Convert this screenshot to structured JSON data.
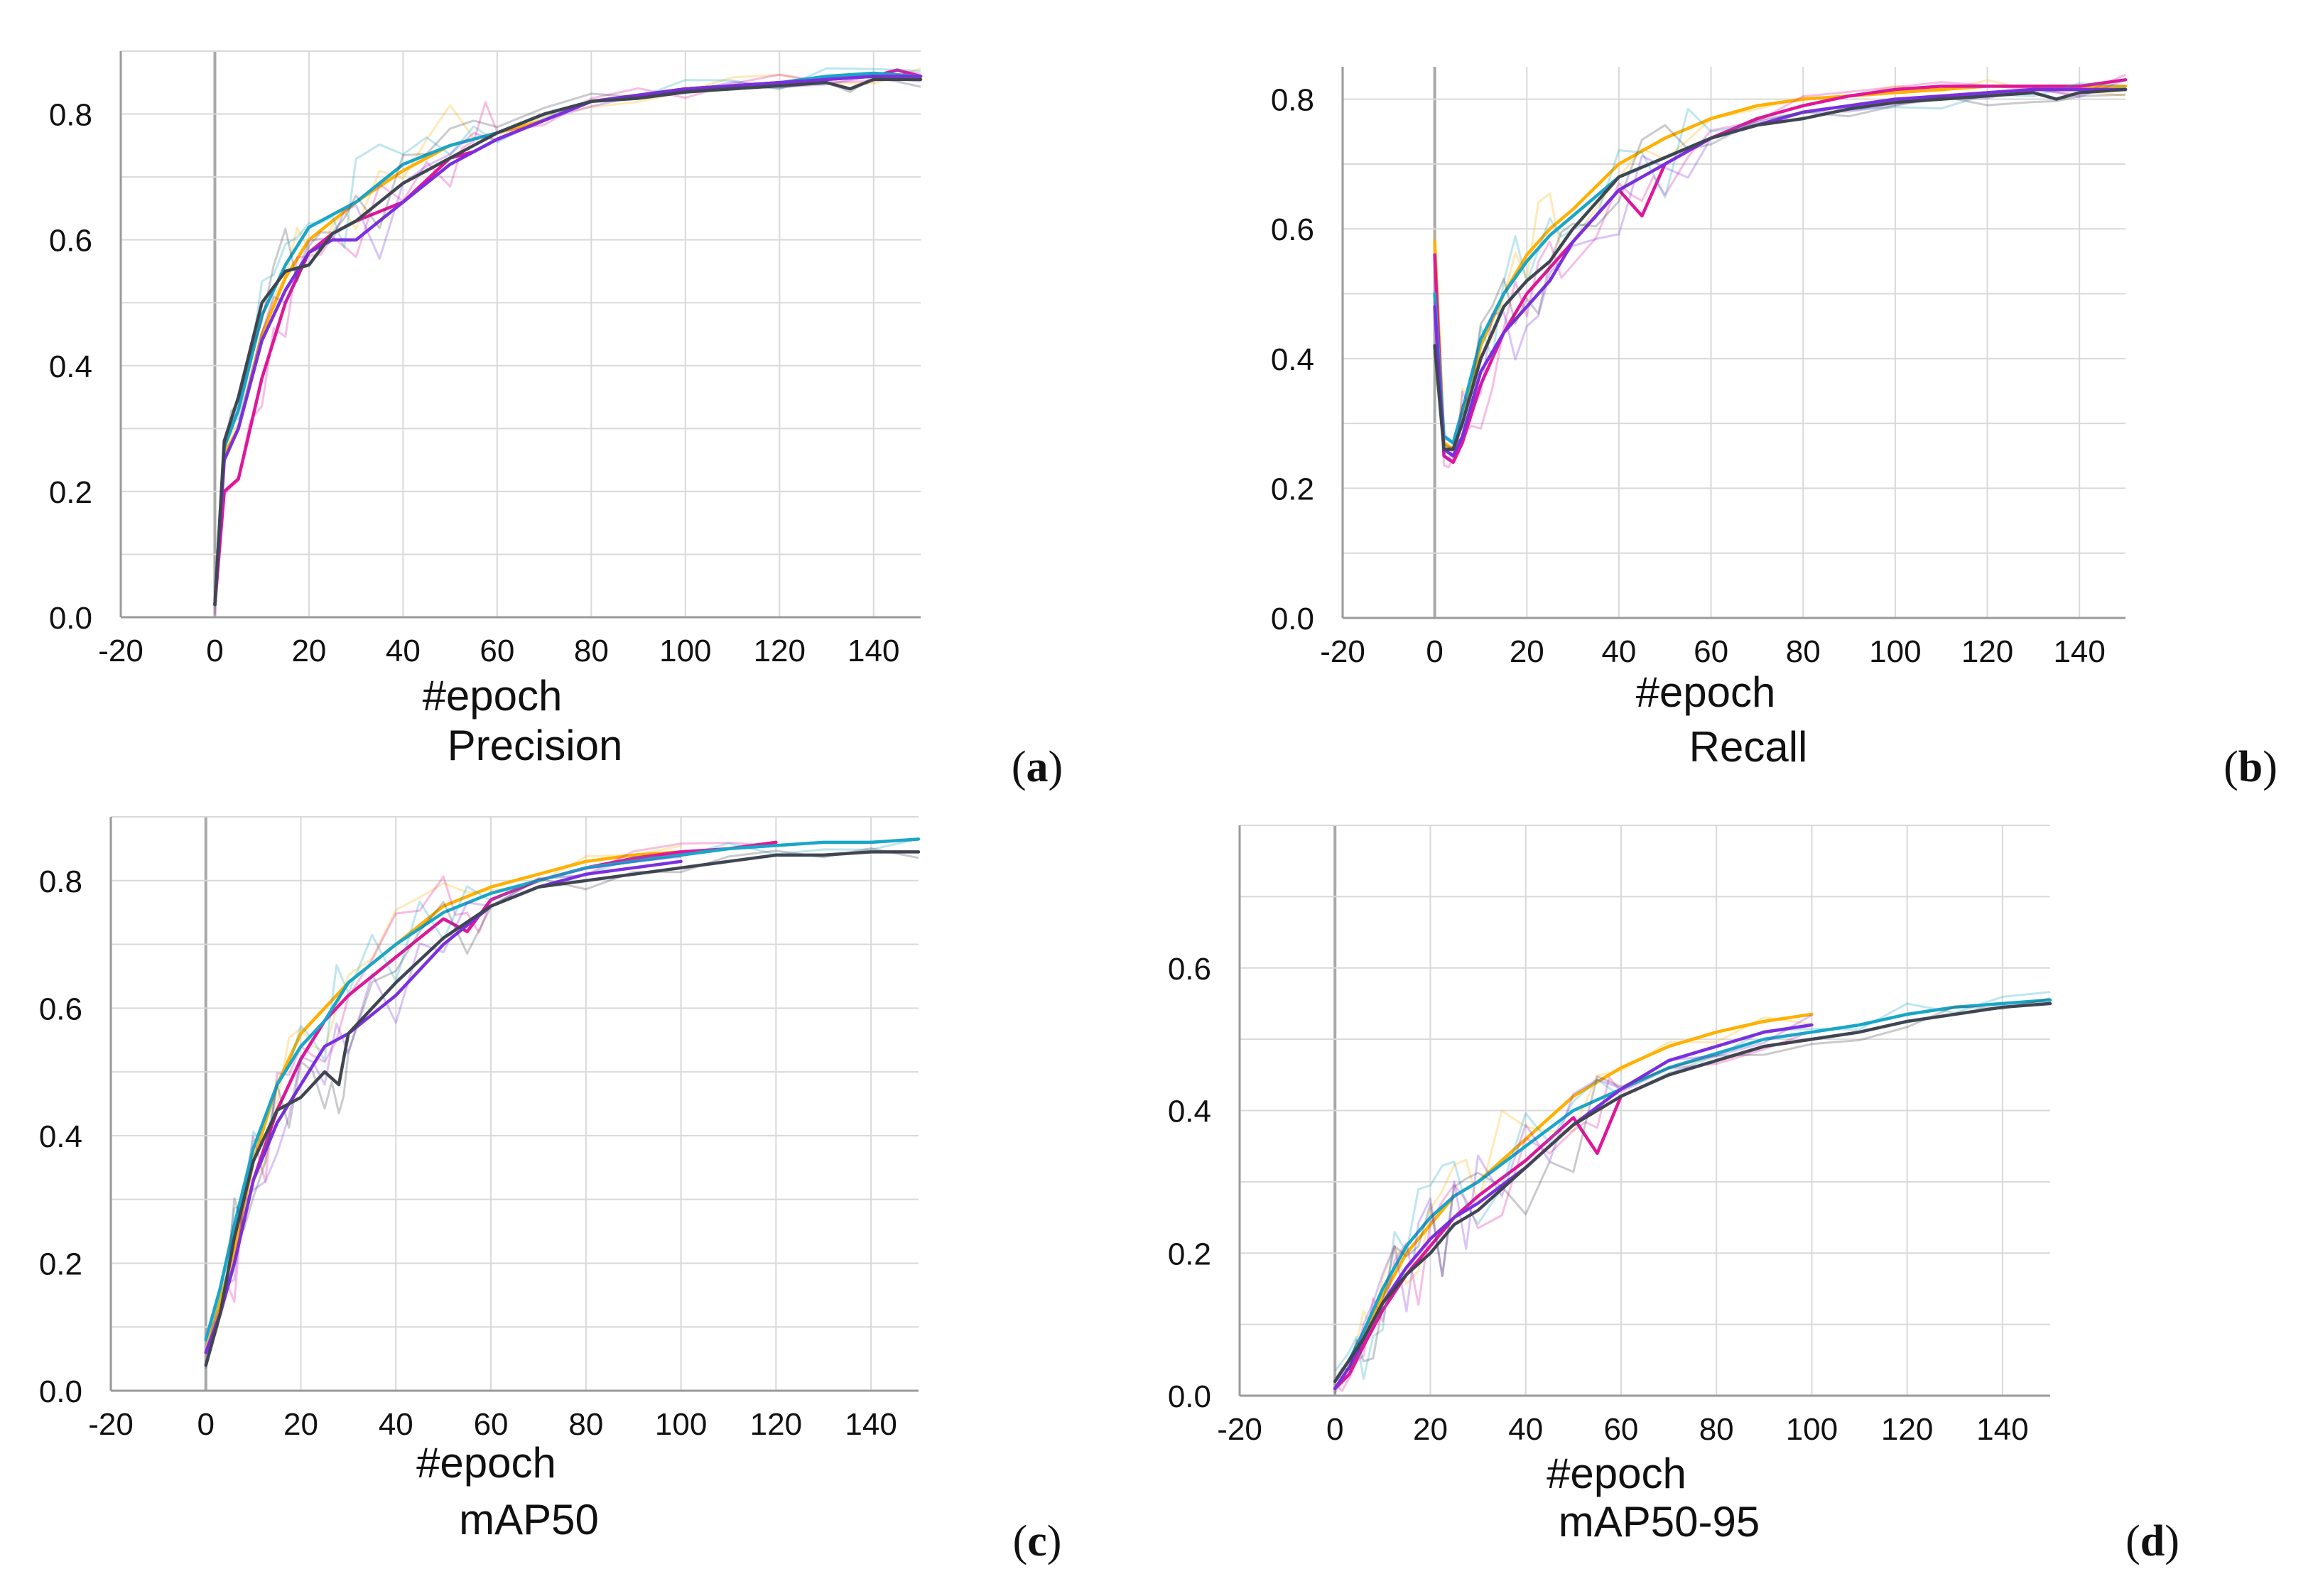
{
  "series_names": [
    "orange",
    "magenta",
    "cyan",
    "purple",
    "gray"
  ],
  "series_colors": [
    "#ffb000",
    "#e0169a",
    "#19a6c7",
    "#7b2fe0",
    "#3f4652"
  ],
  "chart_data": [
    {
      "id": "a",
      "type": "line",
      "letter": "a",
      "xlabel": "#epoch",
      "title": "Precision",
      "xlim": [
        -20,
        150
      ],
      "ylim": [
        0,
        0.9
      ],
      "xticks": [
        -20,
        0,
        20,
        40,
        60,
        80,
        100,
        120,
        140
      ],
      "xtick_labels": [
        "-20",
        "0",
        "20",
        "40",
        "60",
        "80",
        "100",
        "120",
        "140"
      ],
      "yticks": [
        0.0,
        0.2,
        0.4,
        0.6,
        0.8
      ],
      "ytick_labels": [
        "0.0",
        "0.2",
        "0.4",
        "0.6",
        "0.8"
      ],
      "series": [
        {
          "name": "orange",
          "x": [
            0,
            2,
            5,
            10,
            15,
            20,
            25,
            30,
            40,
            50,
            60,
            70,
            80,
            90,
            100,
            110,
            120,
            130,
            140,
            150
          ],
          "values": [
            0.02,
            0.26,
            0.3,
            0.45,
            0.54,
            0.6,
            0.63,
            0.66,
            0.71,
            0.75,
            0.77,
            0.79,
            0.82,
            0.83,
            0.84,
            0.845,
            0.85,
            0.855,
            0.86,
            0.86
          ]
        },
        {
          "name": "magenta",
          "x": [
            0,
            2,
            5,
            10,
            15,
            20,
            25,
            30,
            40,
            50,
            55,
            60,
            70,
            80,
            90,
            100,
            110,
            120,
            130,
            140,
            145,
            150
          ],
          "values": [
            0.02,
            0.2,
            0.22,
            0.38,
            0.5,
            0.58,
            0.61,
            0.63,
            0.66,
            0.73,
            0.74,
            0.76,
            0.79,
            0.82,
            0.83,
            0.84,
            0.845,
            0.85,
            0.855,
            0.86,
            0.87,
            0.86
          ]
        },
        {
          "name": "cyan",
          "x": [
            0,
            2,
            5,
            10,
            15,
            20,
            25,
            30,
            40,
            50,
            60,
            70,
            80,
            90,
            100,
            110,
            120,
            130,
            140,
            150
          ],
          "values": [
            0.02,
            0.27,
            0.33,
            0.48,
            0.56,
            0.62,
            0.64,
            0.66,
            0.72,
            0.75,
            0.77,
            0.8,
            0.82,
            0.83,
            0.84,
            0.845,
            0.85,
            0.86,
            0.865,
            0.86
          ]
        },
        {
          "name": "purple",
          "x": [
            0,
            2,
            5,
            10,
            15,
            20,
            25,
            30,
            40,
            50,
            60,
            70,
            80,
            90,
            100,
            110,
            120,
            130,
            140,
            150
          ],
          "values": [
            0.02,
            0.25,
            0.3,
            0.44,
            0.52,
            0.58,
            0.6,
            0.6,
            0.66,
            0.72,
            0.76,
            0.79,
            0.82,
            0.83,
            0.84,
            0.845,
            0.85,
            0.855,
            0.86,
            0.86
          ]
        },
        {
          "name": "gray",
          "x": [
            0,
            2,
            5,
            10,
            15,
            20,
            25,
            30,
            40,
            50,
            60,
            70,
            80,
            90,
            100,
            110,
            120,
            130,
            135,
            140,
            150
          ],
          "values": [
            0.02,
            0.28,
            0.35,
            0.5,
            0.55,
            0.56,
            0.61,
            0.63,
            0.69,
            0.73,
            0.77,
            0.8,
            0.82,
            0.825,
            0.835,
            0.84,
            0.845,
            0.85,
            0.84,
            0.855,
            0.855
          ]
        }
      ]
    },
    {
      "id": "b",
      "type": "line",
      "letter": "b",
      "xlabel": "#epoch",
      "title": "Recall",
      "xlim": [
        -20,
        150
      ],
      "ylim": [
        0,
        0.85
      ],
      "xticks": [
        -20,
        0,
        20,
        40,
        60,
        80,
        100,
        120,
        140
      ],
      "xtick_labels": [
        "-20",
        "0",
        "20",
        "40",
        "60",
        "80",
        "100",
        "120",
        "140"
      ],
      "yticks": [
        0.0,
        0.2,
        0.4,
        0.6,
        0.8
      ],
      "ytick_labels": [
        "0.0",
        "0.2",
        "0.4",
        "0.6",
        "0.8"
      ],
      "series": [
        {
          "name": "orange",
          "x": [
            0,
            2,
            4,
            6,
            10,
            15,
            20,
            25,
            30,
            40,
            50,
            60,
            70,
            80,
            90,
            100,
            110,
            120,
            130,
            140,
            150
          ],
          "values": [
            0.58,
            0.27,
            0.26,
            0.3,
            0.42,
            0.5,
            0.56,
            0.6,
            0.63,
            0.7,
            0.74,
            0.77,
            0.79,
            0.8,
            0.805,
            0.81,
            0.815,
            0.82,
            0.82,
            0.82,
            0.82
          ]
        },
        {
          "name": "magenta",
          "x": [
            0,
            2,
            4,
            6,
            10,
            15,
            20,
            25,
            30,
            40,
            45,
            50,
            60,
            70,
            80,
            90,
            100,
            110,
            120,
            130,
            140,
            150
          ],
          "values": [
            0.56,
            0.25,
            0.24,
            0.27,
            0.36,
            0.44,
            0.5,
            0.54,
            0.58,
            0.66,
            0.62,
            0.7,
            0.74,
            0.77,
            0.79,
            0.805,
            0.815,
            0.82,
            0.82,
            0.82,
            0.82,
            0.83
          ]
        },
        {
          "name": "cyan",
          "x": [
            0,
            2,
            4,
            6,
            10,
            15,
            20,
            25,
            30,
            40,
            50,
            60,
            70,
            80,
            90,
            100,
            110,
            120,
            130,
            140,
            150
          ],
          "values": [
            0.5,
            0.28,
            0.27,
            0.32,
            0.43,
            0.5,
            0.55,
            0.59,
            0.62,
            0.68,
            0.71,
            0.74,
            0.76,
            0.78,
            0.79,
            0.8,
            0.8,
            0.81,
            0.815,
            0.815,
            0.815
          ]
        },
        {
          "name": "purple",
          "x": [
            0,
            2,
            4,
            6,
            10,
            15,
            20,
            25,
            30,
            40,
            50,
            60,
            70,
            80,
            90,
            100,
            110,
            120,
            130,
            140,
            150
          ],
          "values": [
            0.48,
            0.26,
            0.25,
            0.28,
            0.38,
            0.44,
            0.48,
            0.52,
            0.58,
            0.66,
            0.7,
            0.74,
            0.76,
            0.78,
            0.79,
            0.8,
            0.805,
            0.81,
            0.815,
            0.815,
            0.815
          ]
        },
        {
          "name": "gray",
          "x": [
            0,
            2,
            4,
            6,
            10,
            15,
            20,
            25,
            30,
            40,
            50,
            60,
            70,
            80,
            90,
            100,
            110,
            120,
            130,
            135,
            140,
            150
          ],
          "values": [
            0.42,
            0.26,
            0.26,
            0.3,
            0.4,
            0.48,
            0.52,
            0.55,
            0.6,
            0.68,
            0.71,
            0.74,
            0.76,
            0.77,
            0.785,
            0.795,
            0.8,
            0.805,
            0.81,
            0.8,
            0.81,
            0.815
          ]
        }
      ]
    },
    {
      "id": "c",
      "type": "line",
      "letter": "c",
      "xlabel": "#epoch",
      "title": "mAP50",
      "xlim": [
        -20,
        150
      ],
      "ylim": [
        0,
        0.9
      ],
      "xticks": [
        -20,
        0,
        20,
        40,
        60,
        80,
        100,
        120,
        140
      ],
      "xtick_labels": [
        "-20",
        "0",
        "20",
        "40",
        "60",
        "80",
        "100",
        "120",
        "140"
      ],
      "yticks": [
        0.0,
        0.2,
        0.4,
        0.6,
        0.8
      ],
      "ytick_labels": [
        "0.0",
        "0.2",
        "0.4",
        "0.6",
        "0.8"
      ],
      "series": [
        {
          "name": "orange",
          "x": [
            0,
            3,
            6,
            10,
            15,
            20,
            25,
            30,
            40,
            50,
            60,
            70,
            80,
            90,
            100
          ],
          "values": [
            0.06,
            0.14,
            0.22,
            0.36,
            0.48,
            0.56,
            0.6,
            0.64,
            0.7,
            0.76,
            0.79,
            0.81,
            0.83,
            0.84,
            0.845
          ]
        },
        {
          "name": "magenta",
          "x": [
            0,
            3,
            6,
            10,
            15,
            20,
            25,
            30,
            40,
            50,
            55,
            60,
            70,
            80,
            90,
            100,
            110,
            120
          ],
          "values": [
            0.06,
            0.12,
            0.2,
            0.33,
            0.44,
            0.52,
            0.58,
            0.62,
            0.68,
            0.74,
            0.72,
            0.77,
            0.8,
            0.82,
            0.835,
            0.845,
            0.85,
            0.86
          ]
        },
        {
          "name": "cyan",
          "x": [
            0,
            3,
            6,
            10,
            15,
            20,
            25,
            30,
            40,
            50,
            60,
            70,
            80,
            90,
            100,
            110,
            120,
            130,
            140,
            150
          ],
          "values": [
            0.08,
            0.16,
            0.26,
            0.38,
            0.48,
            0.54,
            0.58,
            0.64,
            0.7,
            0.75,
            0.78,
            0.8,
            0.82,
            0.83,
            0.84,
            0.85,
            0.855,
            0.86,
            0.86,
            0.865
          ]
        },
        {
          "name": "purple",
          "x": [
            0,
            3,
            6,
            10,
            15,
            20,
            25,
            30,
            40,
            50,
            60,
            70,
            80,
            90,
            100
          ],
          "values": [
            0.06,
            0.12,
            0.2,
            0.33,
            0.42,
            0.48,
            0.54,
            0.56,
            0.62,
            0.7,
            0.76,
            0.79,
            0.81,
            0.82,
            0.83
          ]
        },
        {
          "name": "gray",
          "x": [
            0,
            3,
            6,
            10,
            15,
            20,
            25,
            28,
            30,
            40,
            50,
            60,
            70,
            80,
            90,
            100,
            110,
            120,
            130,
            140,
            150
          ],
          "values": [
            0.04,
            0.12,
            0.24,
            0.36,
            0.44,
            0.46,
            0.5,
            0.48,
            0.56,
            0.64,
            0.71,
            0.76,
            0.79,
            0.8,
            0.81,
            0.82,
            0.83,
            0.84,
            0.84,
            0.845,
            0.845
          ]
        }
      ]
    },
    {
      "id": "d",
      "type": "line",
      "letter": "d",
      "xlabel": "#epoch",
      "title": "mAP50-95",
      "xlim": [
        -20,
        150
      ],
      "ylim": [
        0,
        0.8
      ],
      "xticks": [
        -20,
        0,
        20,
        40,
        60,
        80,
        100,
        120,
        140
      ],
      "xtick_labels": [
        "-20",
        "0",
        "20",
        "40",
        "60",
        "80",
        "100",
        "120",
        "140"
      ],
      "yticks": [
        0.0,
        0.2,
        0.4,
        0.6
      ],
      "ytick_labels": [
        "0.0",
        "0.2",
        "0.4",
        "0.6"
      ],
      "series": [
        {
          "name": "orange",
          "x": [
            0,
            3,
            6,
            10,
            15,
            20,
            25,
            30,
            40,
            50,
            60,
            70,
            80,
            90,
            100
          ],
          "values": [
            0.01,
            0.04,
            0.08,
            0.14,
            0.2,
            0.24,
            0.28,
            0.3,
            0.36,
            0.42,
            0.46,
            0.49,
            0.51,
            0.525,
            0.535
          ]
        },
        {
          "name": "magenta",
          "x": [
            0,
            3,
            6,
            10,
            15,
            20,
            25,
            30,
            40,
            50,
            55,
            60,
            70,
            80,
            90,
            100
          ],
          "values": [
            0.01,
            0.03,
            0.07,
            0.12,
            0.17,
            0.21,
            0.25,
            0.28,
            0.33,
            0.39,
            0.34,
            0.42,
            0.45,
            0.47,
            0.49,
            0.5
          ]
        },
        {
          "name": "cyan",
          "x": [
            0,
            3,
            6,
            10,
            15,
            20,
            25,
            30,
            40,
            50,
            60,
            70,
            80,
            90,
            100,
            110,
            120,
            130,
            140,
            150
          ],
          "values": [
            0.02,
            0.05,
            0.09,
            0.15,
            0.21,
            0.25,
            0.28,
            0.3,
            0.35,
            0.4,
            0.43,
            0.46,
            0.48,
            0.5,
            0.51,
            0.52,
            0.535,
            0.545,
            0.55,
            0.555
          ]
        },
        {
          "name": "purple",
          "x": [
            0,
            3,
            6,
            10,
            15,
            20,
            25,
            30,
            40,
            50,
            60,
            70,
            80,
            90,
            100
          ],
          "values": [
            0.01,
            0.04,
            0.08,
            0.13,
            0.18,
            0.22,
            0.25,
            0.27,
            0.32,
            0.38,
            0.43,
            0.47,
            0.49,
            0.51,
            0.52
          ]
        },
        {
          "name": "gray",
          "x": [
            0,
            3,
            6,
            10,
            15,
            20,
            25,
            30,
            40,
            50,
            60,
            70,
            80,
            90,
            100,
            110,
            120,
            130,
            140,
            150
          ],
          "values": [
            0.02,
            0.05,
            0.08,
            0.13,
            0.17,
            0.2,
            0.24,
            0.26,
            0.32,
            0.38,
            0.42,
            0.45,
            0.47,
            0.49,
            0.5,
            0.51,
            0.525,
            0.535,
            0.545,
            0.55
          ]
        }
      ]
    }
  ]
}
